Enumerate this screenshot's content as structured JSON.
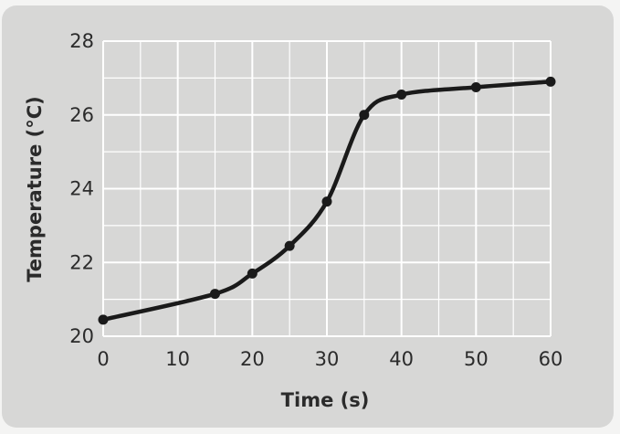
{
  "chart_data": {
    "type": "line",
    "xlabel": "Time (s)",
    "ylabel": "Temperature (°C)",
    "xlim": [
      0,
      60
    ],
    "ylim": [
      20,
      28
    ],
    "xticks": [
      0,
      10,
      20,
      30,
      40,
      50,
      60
    ],
    "yticks": [
      20,
      22,
      24,
      26,
      28
    ],
    "grid": true,
    "colors": {
      "line": "#1a1a1a",
      "grid": "#ffffff",
      "panel": "#d7d7d6"
    },
    "series": [
      {
        "x": [
          0,
          15,
          20,
          25,
          30,
          35,
          40,
          50,
          60
        ],
        "y": [
          20.45,
          21.15,
          21.7,
          22.45,
          23.65,
          26.0,
          26.55,
          26.75,
          26.9
        ],
        "marker": "circle",
        "smooth": true
      }
    ]
  }
}
